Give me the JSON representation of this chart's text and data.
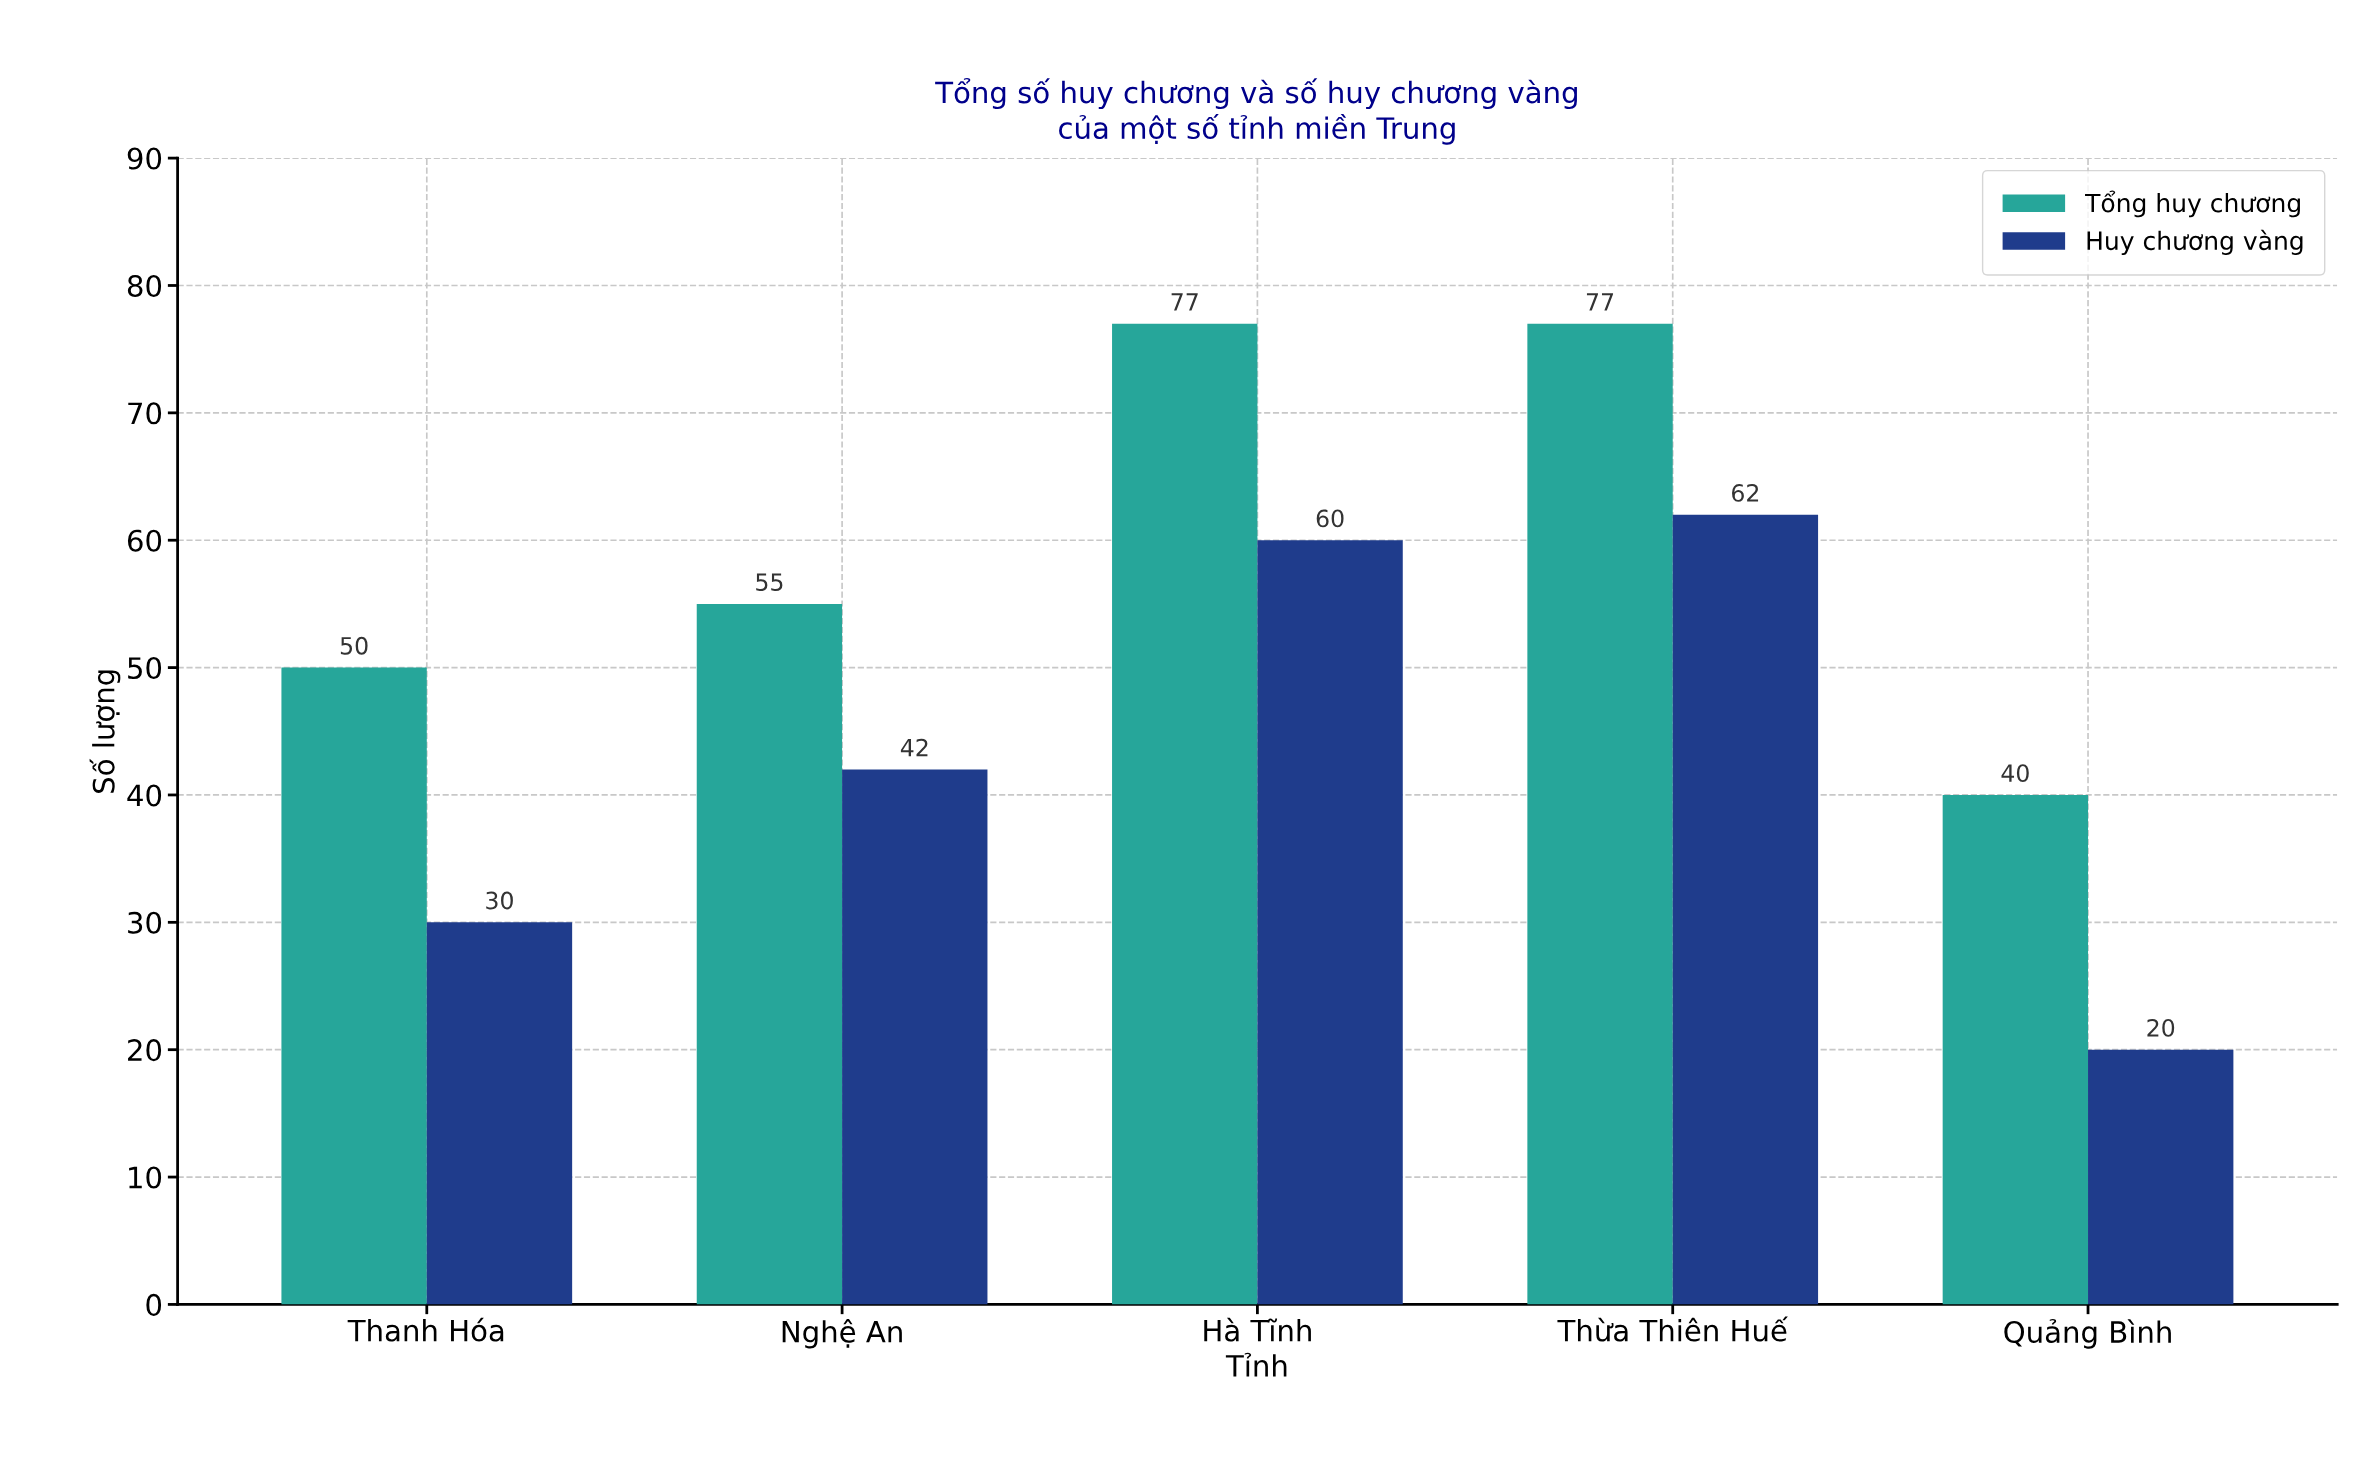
{
  "chart_data": {
    "type": "bar",
    "title": "Tổng số huy chương và số huy chương vàng\ncủa một số tỉnh miền Trung",
    "xlabel": "Tỉnh",
    "ylabel": "Số lượng",
    "categories": [
      "Thanh Hóa",
      "Nghệ An",
      "Hà Tĩnh",
      "Thừa Thiên Huế",
      "Quảng Bình"
    ],
    "series": [
      {
        "name": "Tổng huy chương",
        "color": "#26a69a",
        "values": [
          50,
          55,
          77,
          77,
          40
        ]
      },
      {
        "name": "Huy chương vàng",
        "color": "#1f3c8c",
        "values": [
          30,
          42,
          60,
          62,
          20
        ]
      }
    ],
    "ylim": [
      0,
      90
    ],
    "yticks": [
      0,
      10,
      20,
      30,
      40,
      50,
      60,
      70,
      80,
      90
    ],
    "grid": true,
    "legend": "top right",
    "data_labels": true
  }
}
